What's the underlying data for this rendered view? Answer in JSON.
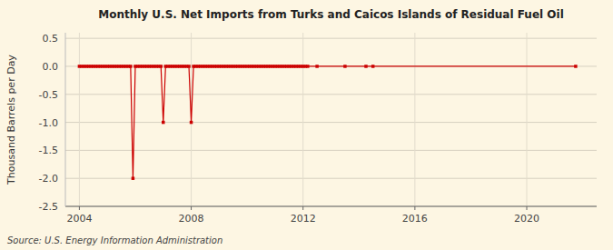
{
  "chart_data": {
    "type": "line",
    "title": "Monthly U.S. Net Imports from Turks and Caicos Islands of Residual Fuel Oil",
    "y_label": "Thousand Barrels per Day",
    "annotations": [
      "Source: U.S. Energy Information Administration"
    ],
    "color": "#cc0000",
    "marker": "square",
    "grid": true,
    "xlim": [
      2003.5,
      2022.5
    ],
    "ylim": [
      -2.5,
      0.6
    ],
    "xticks": [
      2004,
      2008,
      2012,
      2016,
      2020
    ],
    "yticks": [
      0.5,
      {
        "value": 0.0,
        "label": "0.0"
      },
      -0.5,
      {
        "value": -1.0,
        "label": "-1.0"
      },
      -1.5,
      {
        "value": -2.0,
        "label": "-2.0"
      },
      -2.5
    ],
    "x": [
      2004.0,
      2004.083,
      2004.167,
      2004.25,
      2004.333,
      2004.417,
      2004.5,
      2004.583,
      2004.667,
      2004.75,
      2004.833,
      2004.917,
      2005.0,
      2005.083,
      2005.167,
      2005.25,
      2005.333,
      2005.417,
      2005.5,
      2005.583,
      2005.667,
      2005.75,
      2005.833,
      2005.917,
      2006.0,
      2006.083,
      2006.167,
      2006.25,
      2006.333,
      2006.417,
      2006.5,
      2006.583,
      2006.667,
      2006.75,
      2006.833,
      2006.917,
      2007.0,
      2007.083,
      2007.167,
      2007.25,
      2007.333,
      2007.417,
      2007.5,
      2007.583,
      2007.667,
      2007.75,
      2007.833,
      2007.917,
      2008.0,
      2008.083,
      2008.167,
      2008.25,
      2008.333,
      2008.417,
      2008.5,
      2008.583,
      2008.667,
      2008.75,
      2008.833,
      2008.917,
      2009.0,
      2009.083,
      2009.167,
      2009.25,
      2009.333,
      2009.417,
      2009.5,
      2009.583,
      2009.667,
      2009.75,
      2009.833,
      2009.917,
      2010.0,
      2010.083,
      2010.167,
      2010.25,
      2010.333,
      2010.417,
      2010.5,
      2010.583,
      2010.667,
      2010.75,
      2010.833,
      2010.917,
      2011.0,
      2011.083,
      2011.167,
      2011.25,
      2011.333,
      2011.417,
      2011.5,
      2011.583,
      2011.667,
      2011.75,
      2011.833,
      2011.917,
      2012.0,
      2012.083,
      2012.167,
      2012.5,
      2013.5,
      2014.25,
      2014.5,
      2021.75
    ],
    "values": [
      0,
      0,
      0,
      0,
      0,
      0,
      0,
      0,
      0,
      0,
      0,
      0,
      0,
      0,
      0,
      0,
      0,
      0,
      0,
      0,
      0,
      0,
      0,
      -2.0,
      0,
      0,
      0,
      0,
      0,
      0,
      0,
      0,
      0,
      0,
      0,
      0,
      -1.0,
      0,
      0,
      0,
      0,
      0,
      0,
      0,
      0,
      0,
      0,
      0,
      -1.0,
      0,
      0,
      0,
      0,
      0,
      0,
      0,
      0,
      0,
      0,
      0,
      0,
      0,
      0,
      0,
      0,
      0,
      0,
      0,
      0,
      0,
      0,
      0,
      0,
      0,
      0,
      0,
      0,
      0,
      0,
      0,
      0,
      0,
      0,
      0,
      0,
      0,
      0,
      0,
      0,
      0,
      0,
      0,
      0,
      0,
      0,
      0,
      0,
      0,
      0,
      0,
      0,
      0,
      0,
      0
    ]
  }
}
